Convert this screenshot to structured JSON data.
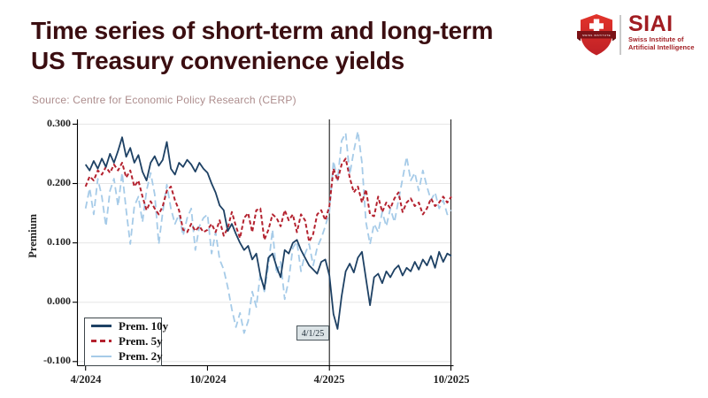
{
  "header": {
    "title_line1": "Time series of short-term and long-term",
    "title_line2": "US Treasury convenience yields",
    "source": "Source: Centre for Economic Policy Research (CERP)"
  },
  "logo": {
    "brand": "SIAI",
    "subtitle_line1": "Swiss Institute of",
    "subtitle_line2": "Artificial Intelligence",
    "shield_color": "#d8282a",
    "ribbon_color": "#7c1317",
    "text_color": "#a11d22"
  },
  "colors": {
    "title": "#3b0e11",
    "source": "#ad8d8d",
    "gridline": "#e6e6e6",
    "axis": "#000000",
    "event_line": "#2e2e2e",
    "navy": "#1e4164",
    "red": "#b4222f",
    "light_blue": "#a6cbe8"
  },
  "chart_data": {
    "type": "line",
    "title": "",
    "xlabel": "",
    "ylabel": "Premium",
    "ylim": [
      -0.1,
      0.3
    ],
    "grid": "horizontal",
    "legend_position": "bottom-left",
    "y_tick_labels": [
      "0.300",
      "0.200",
      "0.100",
      "0.000",
      "-0.100"
    ],
    "y_tick_values": [
      0.3,
      0.2,
      0.1,
      0.0,
      -0.1
    ],
    "x_tick_labels": [
      "4/2024",
      "10/2024",
      "4/2025",
      "10/2025"
    ],
    "x_tick_months": [
      0,
      6,
      12,
      18
    ],
    "x_step_months": 0.2,
    "event_line": {
      "x_month": 12,
      "label": "4/1/25"
    },
    "legend": [
      "Prem. 10y",
      "Prem. 5y",
      "Prem. 2y"
    ],
    "series": [
      {
        "name": "Prem. 10y",
        "color": "#1e4164",
        "style": "solid",
        "width": 1.8,
        "values": [
          0.232,
          0.222,
          0.238,
          0.225,
          0.242,
          0.228,
          0.25,
          0.235,
          0.255,
          0.278,
          0.245,
          0.26,
          0.235,
          0.248,
          0.22,
          0.205,
          0.235,
          0.246,
          0.23,
          0.24,
          0.27,
          0.225,
          0.215,
          0.235,
          0.228,
          0.24,
          0.232,
          0.22,
          0.235,
          0.225,
          0.218,
          0.2,
          0.185,
          0.163,
          0.155,
          0.12,
          0.132,
          0.115,
          0.1,
          0.088,
          0.095,
          0.072,
          0.082,
          0.045,
          0.022,
          0.075,
          0.082,
          0.06,
          0.042,
          0.088,
          0.082,
          0.1,
          0.105,
          0.088,
          0.075,
          0.062,
          0.055,
          0.048,
          0.068,
          0.072,
          0.045,
          -0.02,
          -0.045,
          0.01,
          0.052,
          0.065,
          0.05,
          0.075,
          0.085,
          0.04,
          -0.005,
          0.042,
          0.048,
          0.032,
          0.052,
          0.042,
          0.055,
          0.062,
          0.045,
          0.058,
          0.052,
          0.068,
          0.055,
          0.072,
          0.062,
          0.078,
          0.058,
          0.085,
          0.068,
          0.082,
          0.078
        ]
      },
      {
        "name": "Prem. 5y",
        "color": "#b4222f",
        "style": "dashed",
        "width": 2,
        "values": [
          0.195,
          0.212,
          0.205,
          0.222,
          0.215,
          0.228,
          0.218,
          0.232,
          0.222,
          0.235,
          0.21,
          0.222,
          0.195,
          0.205,
          0.178,
          0.155,
          0.17,
          0.158,
          0.148,
          0.162,
          0.188,
          0.195,
          0.172,
          0.155,
          0.122,
          0.118,
          0.132,
          0.12,
          0.128,
          0.118,
          0.122,
          0.132,
          0.118,
          0.138,
          0.112,
          0.125,
          0.152,
          0.128,
          0.108,
          0.142,
          0.15,
          0.118,
          0.155,
          0.158,
          0.105,
          0.122,
          0.148,
          0.142,
          0.128,
          0.155,
          0.138,
          0.148,
          0.118,
          0.148,
          0.138,
          0.102,
          0.115,
          0.148,
          0.155,
          0.138,
          0.162,
          0.225,
          0.205,
          0.232,
          0.242,
          0.21,
          0.185,
          0.195,
          0.168,
          0.19,
          0.148,
          0.145,
          0.178,
          0.152,
          0.168,
          0.158,
          0.175,
          0.185,
          0.152,
          0.168,
          0.175,
          0.162,
          0.168,
          0.148,
          0.158,
          0.175,
          0.162,
          0.168,
          0.178,
          0.168,
          0.178
        ]
      },
      {
        "name": "Prem. 2y",
        "color": "#a6cbe8",
        "style": "long-dash",
        "width": 1.8,
        "values": [
          0.158,
          0.192,
          0.148,
          0.208,
          0.178,
          0.128,
          0.188,
          0.208,
          0.162,
          0.218,
          0.155,
          0.098,
          0.162,
          0.178,
          0.135,
          0.188,
          0.218,
          0.182,
          0.098,
          0.152,
          0.198,
          0.158,
          0.132,
          0.148,
          0.112,
          0.142,
          0.158,
          0.088,
          0.128,
          0.142,
          0.148,
          0.082,
          0.118,
          0.072,
          0.055,
          0.025,
          -0.012,
          -0.042,
          -0.018,
          -0.052,
          -0.032,
          0.018,
          -0.008,
          0.048,
          0.018,
          0.062,
          0.122,
          0.048,
          0.068,
          0.005,
          0.038,
          0.092,
          0.102,
          0.052,
          0.082,
          0.098,
          0.062,
          0.092,
          0.108,
          0.128,
          0.152,
          0.238,
          0.205,
          0.272,
          0.285,
          0.215,
          0.255,
          0.288,
          0.235,
          0.135,
          0.098,
          0.132,
          0.118,
          0.152,
          0.128,
          0.158,
          0.135,
          0.172,
          0.208,
          0.245,
          0.205,
          0.218,
          0.188,
          0.222,
          0.195,
          0.172,
          0.185,
          0.158,
          0.172,
          0.148,
          0.155
        ]
      }
    ]
  }
}
